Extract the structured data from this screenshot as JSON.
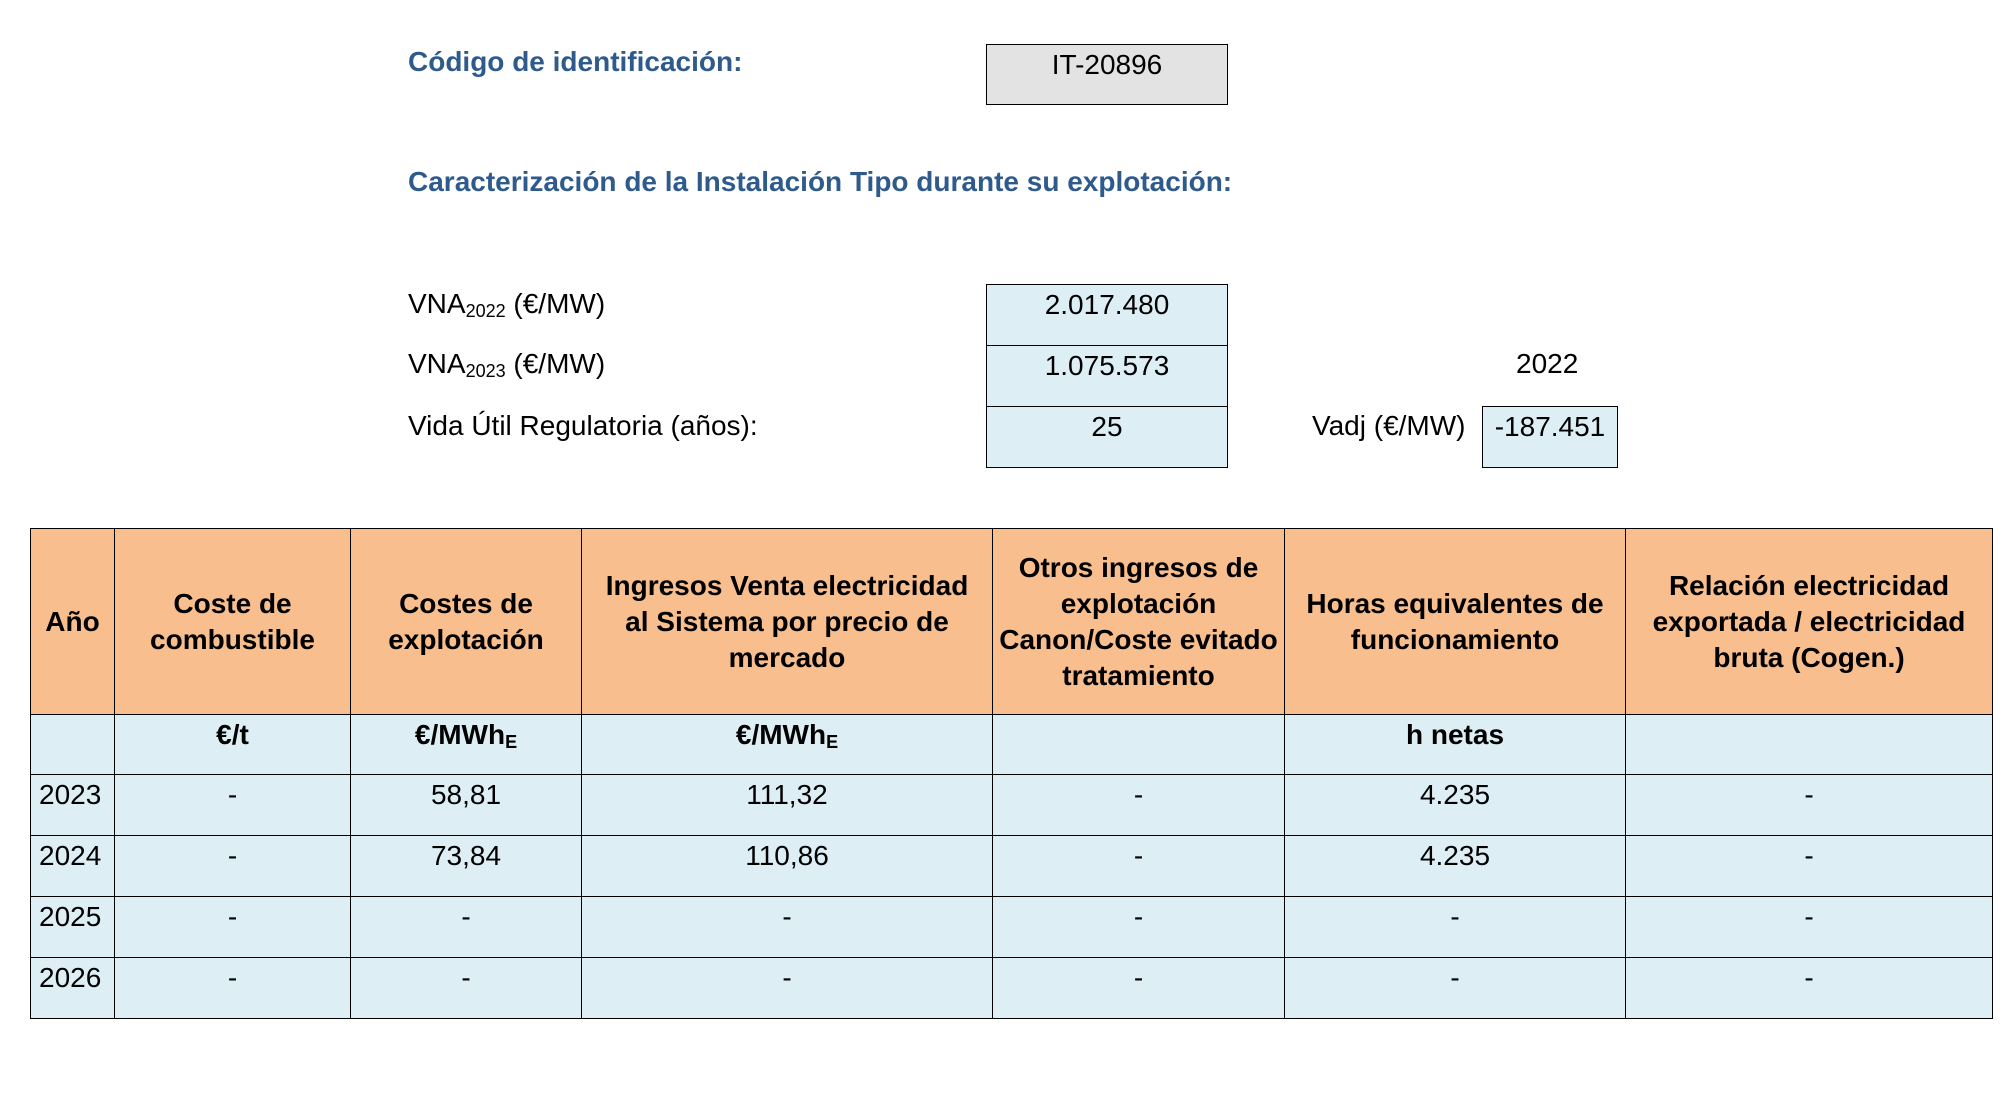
{
  "header": {
    "code_label": "Código de identificación:",
    "code_value": "IT-20896",
    "section_title": "Caracterización de la Instalación Tipo durante su explotación:"
  },
  "params": {
    "vna2022": {
      "label_main": "VNA",
      "label_sub": "2022",
      "label_unit": "(€/MW)",
      "value": "2.017.480"
    },
    "vna2023": {
      "label_main": "VNA",
      "label_sub": "2023",
      "label_unit": "(€/MW)",
      "value": "1.075.573"
    },
    "vida_util": {
      "label": "Vida Útil Regulatoria (años):",
      "value": "25"
    },
    "vadj": {
      "year": "2022",
      "label": "Vadj (€/MW)",
      "value": "-187.451"
    }
  },
  "table": {
    "headers": [
      "Año",
      "Coste de combustible",
      "Costes de explotación",
      "Ingresos Venta electricidad al Sistema por precio de mercado",
      "Otros ingresos de explotación Canon/Coste evitado tratamiento",
      "Horas equivalentes de funcionamiento",
      "Relación electricidad exportada / electricidad bruta (Cogen.)"
    ],
    "units": [
      {
        "main": "",
        "sub": ""
      },
      {
        "main": "€/t",
        "sub": ""
      },
      {
        "main": "€/MWh",
        "sub": "E"
      },
      {
        "main": "€/MWh",
        "sub": "E"
      },
      {
        "main": "",
        "sub": ""
      },
      {
        "main": "h netas",
        "sub": ""
      },
      {
        "main": "",
        "sub": ""
      }
    ],
    "rows": [
      [
        "2023",
        "-",
        "58,81",
        "111,32",
        "-",
        "4.235",
        "-"
      ],
      [
        "2024",
        "-",
        "73,84",
        "110,86",
        "-",
        "4.235",
        "-"
      ],
      [
        "2025",
        "-",
        "-",
        "-",
        "-",
        "-",
        "-"
      ],
      [
        "2026",
        "-",
        "-",
        "-",
        "-",
        "-",
        "-"
      ]
    ]
  }
}
